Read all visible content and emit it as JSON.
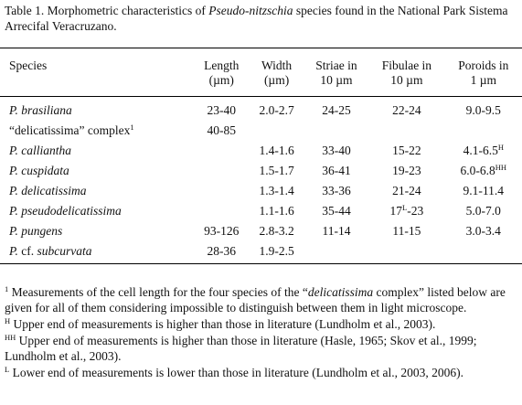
{
  "caption": [
    "Table 1. Morphometric characteristics of ",
    {
      "italic": "Pseudo-nitzschia"
    },
    " species found in the National Park Sistema Arrecifal Veracruzano."
  ],
  "table": {
    "headers": [
      [
        "Species"
      ],
      [
        "Length",
        "(µm)"
      ],
      [
        "Width",
        "(µm)"
      ],
      [
        "Striae in",
        "10 µm"
      ],
      [
        "Fibulae in",
        "10 µm"
      ],
      [
        "Poroids in",
        "1 µm"
      ]
    ],
    "rows": [
      [
        [
          {
            "italic": "P. brasiliana"
          }
        ],
        [
          "23-40"
        ],
        [
          "2.0-2.7"
        ],
        [
          "24-25"
        ],
        [
          "22-24"
        ],
        [
          "9.0-9.5"
        ]
      ],
      [
        [
          "“delicatissima” complex",
          {
            "sup": "1"
          }
        ],
        [
          "40-85"
        ],
        null,
        null,
        null,
        null
      ],
      [
        [
          {
            "italic": "P. calliantha"
          }
        ],
        null,
        [
          "1.4-1.6"
        ],
        [
          "33-40"
        ],
        [
          "15-22"
        ],
        [
          "4.1-6.5",
          {
            "sup": "H"
          }
        ]
      ],
      [
        [
          {
            "italic": "P. cuspidata"
          }
        ],
        null,
        [
          "1.5-1.7"
        ],
        [
          "36-41"
        ],
        [
          "19-23"
        ],
        [
          "6.0-6.8",
          {
            "sup": "HH"
          }
        ]
      ],
      [
        [
          {
            "italic": "P. delicatissima"
          }
        ],
        null,
        [
          "1.3-1.4"
        ],
        [
          "33-36"
        ],
        [
          "21-24"
        ],
        [
          "9.1-11.4"
        ]
      ],
      [
        [
          {
            "italic": "P. pseudodelicatissima"
          }
        ],
        null,
        [
          "1.1-1.6"
        ],
        [
          "35-44"
        ],
        [
          "17",
          {
            "sup": "L"
          },
          "-23"
        ],
        [
          "5.0-7.0"
        ]
      ],
      [
        [
          {
            "italic": "P. pungens"
          }
        ],
        [
          "93-126"
        ],
        [
          "2.8-3.2"
        ],
        [
          "11-14"
        ],
        [
          "11-15"
        ],
        [
          "3.0-3.4"
        ]
      ],
      [
        [
          {
            "italic": "P."
          },
          " cf. ",
          {
            "italic": "subcurvata"
          }
        ],
        [
          "28-36"
        ],
        [
          "1.9-2.5"
        ],
        null,
        null,
        null
      ]
    ]
  },
  "footnotes": [
    [
      {
        "sup": "1"
      },
      " Measurements of the cell length for the four species of the “",
      {
        "italic": "delicatissima"
      },
      " complex” listed below are given for all of them considering impossible to distinguish between them in light microscope."
    ],
    [
      {
        "sup": "H"
      },
      " Upper end of measurements is higher than those in literature (Lundholm et al., 2003)."
    ],
    [
      {
        "sup": "HH"
      },
      " Upper end of measurements is higher than those in literature (Hasle, 1965; Skov et al., 1999; Lundholm et al., 2003)."
    ],
    [
      {
        "sup": "L"
      },
      " Lower end of measurements is lower than those in literature (Lundholm et al., 2003, 2006)."
    ]
  ]
}
